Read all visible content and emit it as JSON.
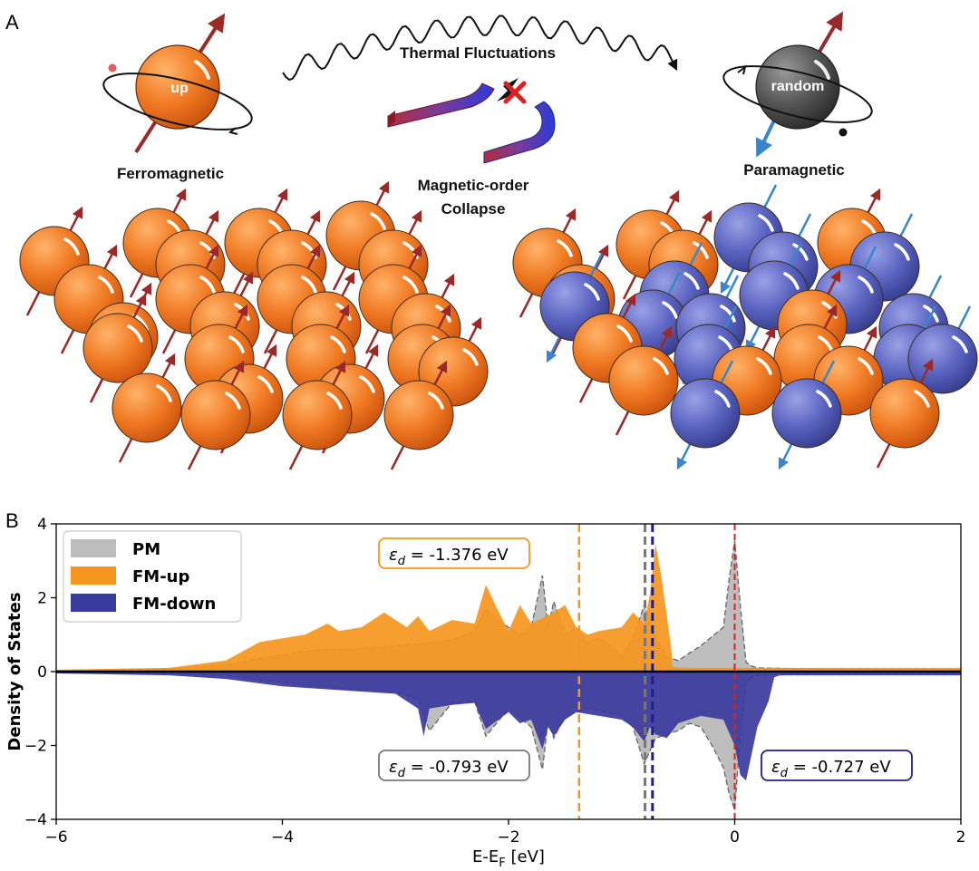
{
  "panel_a": {
    "letter": "A",
    "left_ball_label": "up",
    "left_caption": "Ferromagnetic",
    "right_ball_label": "random",
    "right_caption": "Paramagnetic",
    "wave_caption": "Thermal Fluctuations",
    "magnet_caption_line1": "Magnetic-order",
    "magnet_caption_line2": "Collapse",
    "colors": {
      "orange": "#f07a23",
      "blue": "#5a64c0",
      "gray": "#555555",
      "arrow_red": "#9a2a2a",
      "arrow_blue": "#3a86c8"
    }
  },
  "chart_data": {
    "type": "area",
    "panel_letter": "B",
    "xlabel_main": "E-E",
    "xlabel_sub": "F",
    "xlabel_unit": " [eV]",
    "ylabel": "Density of States",
    "xlim": [
      -6,
      2
    ],
    "ylim": [
      -4,
      4
    ],
    "x_ticks": [
      -6,
      -4,
      -2,
      0,
      2
    ],
    "x_tick_labels": [
      "−6",
      "−4",
      "−2",
      "0",
      "2"
    ],
    "y_ticks": [
      -4,
      -2,
      0,
      2,
      4
    ],
    "y_tick_labels": [
      "−4",
      "−2",
      "0",
      "2",
      "4"
    ],
    "legend": [
      {
        "label": "PM",
        "color": "#bdbdbd"
      },
      {
        "label": "FM-up",
        "color": "#f5961e"
      },
      {
        "label": "FM-down",
        "color": "#3b3b9e"
      }
    ],
    "series": [
      {
        "name": "PM-up",
        "x": [
          -6.0,
          -5.0,
          -4.5,
          -4.2,
          -3.8,
          -3.6,
          -3.3,
          -3.0,
          -2.8,
          -2.5,
          -2.3,
          -2.2,
          -2.1,
          -1.9,
          -1.8,
          -1.7,
          -1.65,
          -1.6,
          -1.5,
          -1.4,
          -1.3,
          -1.2,
          -1.1,
          -1.0,
          -0.9,
          -0.8,
          -0.7,
          -0.6,
          -0.5,
          -0.4,
          -0.3,
          -0.2,
          -0.1,
          -0.05,
          0.0,
          0.05,
          0.1,
          0.15,
          0.2,
          0.5,
          1.0,
          2.0
        ],
        "values": [
          0.03,
          0.08,
          0.18,
          0.35,
          0.55,
          0.6,
          0.62,
          0.7,
          0.75,
          0.85,
          1.1,
          1.7,
          1.4,
          1.0,
          1.2,
          2.6,
          1.2,
          1.9,
          1.0,
          1.2,
          0.8,
          0.9,
          0.7,
          0.4,
          0.9,
          1.8,
          0.9,
          0.4,
          0.3,
          0.5,
          0.7,
          0.95,
          1.2,
          2.5,
          3.55,
          1.8,
          0.25,
          0.15,
          0.1,
          0.08,
          0.07,
          0.06
        ]
      },
      {
        "name": "FM-up",
        "x": [
          -6.0,
          -5.0,
          -4.5,
          -4.2,
          -3.8,
          -3.6,
          -3.5,
          -3.3,
          -3.1,
          -2.9,
          -2.8,
          -2.7,
          -2.5,
          -2.3,
          -2.2,
          -2.1,
          -2.0,
          -1.9,
          -1.8,
          -1.6,
          -1.5,
          -1.4,
          -1.3,
          -1.2,
          -1.0,
          -0.9,
          -0.8,
          -0.75,
          -0.7,
          -0.65,
          -0.6,
          -0.56,
          -0.55,
          -0.4,
          -0.1,
          0.0,
          0.2,
          0.5,
          1.0,
          2.0
        ],
        "values": [
          0.05,
          0.1,
          0.3,
          0.8,
          1.0,
          1.3,
          1.1,
          1.2,
          1.6,
          1.2,
          1.5,
          1.1,
          1.4,
          1.3,
          2.35,
          1.7,
          1.1,
          1.8,
          1.3,
          1.6,
          1.8,
          1.2,
          1.0,
          1.1,
          1.2,
          1.6,
          1.3,
          2.1,
          3.45,
          2.6,
          1.5,
          0.6,
          0.12,
          0.1,
          0.1,
          0.1,
          0.1,
          0.1,
          0.1,
          0.1
        ]
      },
      {
        "name": "PM-down",
        "x": [
          -6.0,
          -5.0,
          -4.5,
          -4.0,
          -3.5,
          -3.0,
          -2.8,
          -2.7,
          -2.5,
          -2.3,
          -2.2,
          -2.0,
          -1.8,
          -1.7,
          -1.65,
          -1.6,
          -1.5,
          -1.4,
          -1.3,
          -1.0,
          -0.9,
          -0.8,
          -0.7,
          -0.5,
          -0.4,
          -0.3,
          -0.2,
          -0.1,
          -0.05,
          0.0,
          0.05,
          0.1,
          0.15,
          0.2,
          0.5,
          1.0,
          2.0
        ],
        "values": [
          -0.03,
          -0.06,
          -0.1,
          -0.3,
          -0.45,
          -0.55,
          -0.75,
          -1.6,
          -0.85,
          -0.8,
          -1.75,
          -1.0,
          -1.5,
          -2.65,
          -1.3,
          -1.8,
          -1.2,
          -1.1,
          -1.0,
          -1.2,
          -1.5,
          -2.5,
          -1.8,
          -1.6,
          -1.4,
          -1.5,
          -2.0,
          -2.6,
          -3.3,
          -3.75,
          -1.7,
          -0.3,
          -0.15,
          -0.1,
          -0.08,
          -0.07,
          -0.06
        ]
      },
      {
        "name": "FM-down",
        "x": [
          -6.0,
          -5.0,
          -4.5,
          -4.0,
          -3.5,
          -3.0,
          -2.9,
          -2.8,
          -2.75,
          -2.7,
          -2.5,
          -2.3,
          -2.2,
          -2.0,
          -1.9,
          -1.8,
          -1.7,
          -1.65,
          -1.6,
          -1.5,
          -1.4,
          -1.2,
          -1.0,
          -0.9,
          -0.8,
          -0.75,
          -0.7,
          -0.6,
          -0.5,
          -0.3,
          -0.1,
          0.0,
          0.05,
          0.1,
          0.2,
          0.3,
          0.35,
          0.4,
          1.0,
          2.0
        ],
        "values": [
          -0.05,
          -0.1,
          -0.2,
          -0.4,
          -0.5,
          -0.6,
          -0.8,
          -1.0,
          -1.75,
          -1.0,
          -0.9,
          -0.85,
          -1.55,
          -1.1,
          -1.4,
          -1.3,
          -2.1,
          -1.5,
          -1.75,
          -1.3,
          -1.1,
          -1.2,
          -1.3,
          -1.5,
          -1.9,
          -1.5,
          -1.7,
          -1.8,
          -1.4,
          -1.2,
          -1.3,
          -2.0,
          -2.8,
          -2.95,
          -1.5,
          -0.8,
          -0.15,
          -0.1,
          -0.1,
          -0.1
        ]
      }
    ],
    "vlines": [
      {
        "x": -1.376,
        "color": "#f5961e",
        "label": "-1.376 eV"
      },
      {
        "x": -0.793,
        "color": "#777777",
        "label": "-0.793 eV"
      },
      {
        "x": -0.727,
        "color": "#1f1f8c",
        "label": "-0.727 eV"
      },
      {
        "x": 0.0,
        "color": "#e02020",
        "label": ""
      }
    ],
    "annotations": [
      {
        "symbol": "ε",
        "sub": "d",
        "text": " = -1.376 eV",
        "edge": "#f5961e"
      },
      {
        "symbol": "ε",
        "sub": "d",
        "text": " = -0.793 eV",
        "edge": "#777777"
      },
      {
        "symbol": "ε",
        "sub": "d",
        "text": " = -0.727 eV",
        "edge": "#1f1f8c"
      }
    ]
  }
}
